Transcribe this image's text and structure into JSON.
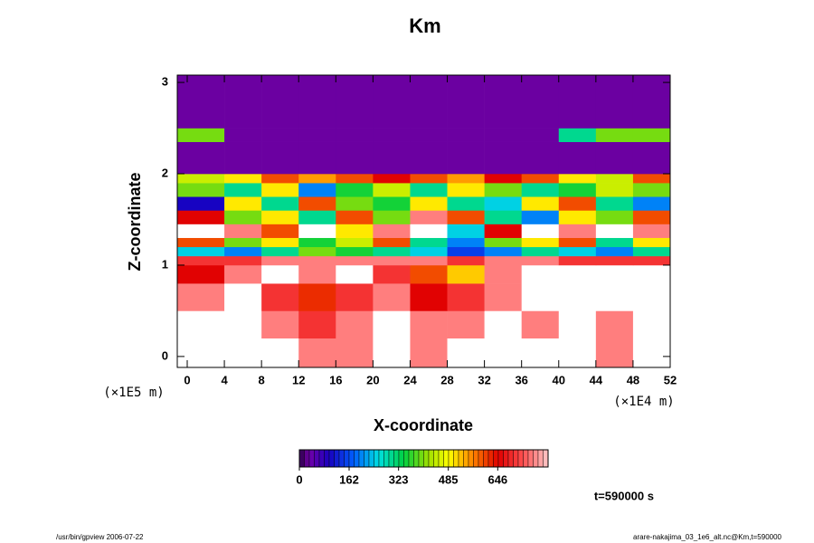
{
  "chart_data": {
    "type": "heatmap",
    "title": "Km",
    "x_label": "X-coordinate",
    "y_label": "Z-coordinate",
    "x_unit": "(×1E4 m)",
    "y_unit": "(×1E5 m)",
    "time_label": "t=590000 s",
    "footer_left": "/usr/bin/gpview 2006-07-22",
    "footer_right": "arare-nakajima_03_1e6_alt.nc@Km,t=590000",
    "xlim": [
      -1.07,
      52
    ],
    "ylim": [
      -0.12,
      3.08
    ],
    "xticks": [
      0,
      4,
      8,
      12,
      16,
      20,
      24,
      28,
      32,
      36,
      40,
      44,
      48,
      52
    ],
    "yticks": [
      0,
      1,
      2,
      3
    ],
    "xbins": [
      -1.07,
      4,
      8,
      12,
      16,
      20,
      24,
      28,
      32,
      36,
      40,
      44,
      48,
      52
    ],
    "ybins": [
      -0.12,
      0.2,
      0.5,
      0.8,
      1.0,
      1.1,
      1.2,
      1.3,
      1.45,
      1.6,
      1.75,
      1.9,
      2.0,
      2.35,
      2.5,
      3.08
    ],
    "values": [
      [
        900,
        900,
        900,
        760,
        760,
        900,
        760,
        900,
        900,
        900,
        900,
        760,
        900
      ],
      [
        900,
        900,
        760,
        700,
        760,
        900,
        760,
        760,
        900,
        760,
        900,
        760,
        900
      ],
      [
        760,
        900,
        700,
        620,
        700,
        760,
        650,
        700,
        760,
        900,
        900,
        900,
        900
      ],
      [
        650,
        760,
        900,
        760,
        900,
        700,
        600,
        520,
        760,
        900,
        900,
        900,
        900
      ],
      [
        700,
        700,
        760,
        760,
        760,
        760,
        760,
        700,
        760,
        760,
        700,
        700,
        700
      ],
      [
        250,
        200,
        300,
        400,
        350,
        300,
        250,
        150,
        200,
        300,
        250,
        200,
        300
      ],
      [
        600,
        400,
        500,
        350,
        450,
        600,
        300,
        200,
        400,
        500,
        600,
        300,
        500
      ],
      [
        900,
        760,
        600,
        900,
        500,
        760,
        900,
        250,
        650,
        900,
        760,
        900,
        760
      ],
      [
        650,
        400,
        500,
        300,
        600,
        400,
        760,
        600,
        300,
        200,
        500,
        400,
        600
      ],
      [
        100,
        500,
        300,
        600,
        400,
        350,
        500,
        300,
        250,
        500,
        600,
        300,
        200
      ],
      [
        400,
        300,
        500,
        200,
        350,
        450,
        300,
        500,
        400,
        300,
        350,
        450,
        400
      ],
      [
        450,
        500,
        600,
        550,
        600,
        650,
        600,
        550,
        650,
        600,
        500,
        450,
        600
      ],
      [
        30,
        30,
        30,
        30,
        30,
        30,
        30,
        30,
        30,
        30,
        30,
        30,
        30
      ],
      [
        400,
        30,
        30,
        30,
        30,
        30,
        30,
        30,
        30,
        30,
        300,
        400,
        400
      ],
      [
        30,
        30,
        30,
        30,
        30,
        30,
        30,
        30,
        30,
        30,
        30,
        30,
        30
      ]
    ],
    "colorbar": {
      "lim": [
        0,
        810
      ],
      "ticks": [
        0,
        162,
        323,
        485,
        646
      ]
    }
  }
}
